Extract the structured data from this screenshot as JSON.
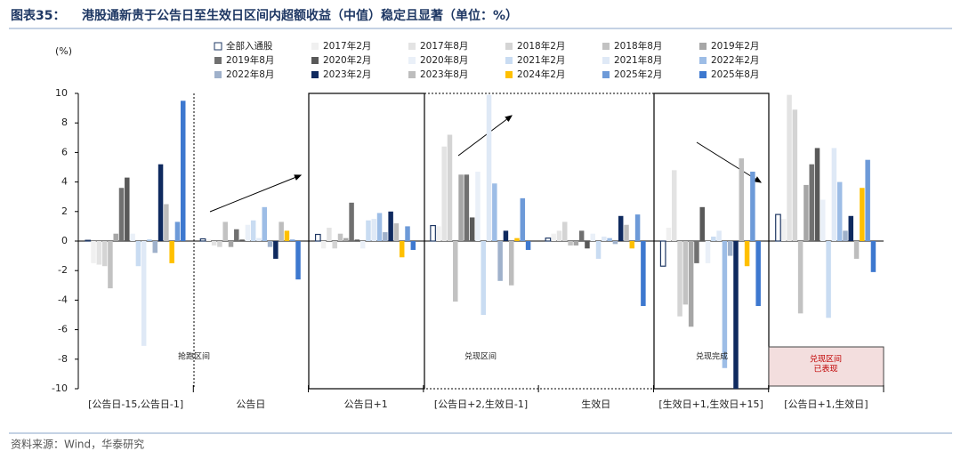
{
  "chart_data": {
    "type": "bar",
    "title_prefix": "图表35：",
    "title": "港股通新贵于公告日至生效日区间内超额收益（中值）稳定且显著（单位：%）",
    "y_unit": "(%)",
    "source": "资料来源：Wind，华泰研究",
    "categories": [
      "[公告日-15,公告日-1]",
      "公告日",
      "公告日+1",
      "[公告日+2,生效日-1]",
      "生效日",
      "[生效日+1,生效日+15]",
      "[公告日+1,生效日]"
    ],
    "annotations": [
      "抢跑区间",
      "兑现区间",
      "兑现完成"
    ],
    "highlight_note": [
      "兑现区间",
      "已表现"
    ],
    "ylim": [
      -10,
      10
    ],
    "yticks": [
      -10,
      -8,
      -6,
      -4,
      -2,
      0,
      2,
      4,
      6,
      8,
      10
    ],
    "series": [
      {
        "name": "全部入通股",
        "color": "#ffffff",
        "values": [
          0.05,
          0.15,
          0.45,
          1.05,
          0.2,
          -1.7,
          1.8
        ]
      },
      {
        "name": "2017年2月",
        "color": "#f0f0f0",
        "values": [
          -1.5,
          0.1,
          -0.5,
          1.0,
          0.5,
          0.9,
          1.5
        ]
      },
      {
        "name": "2017年8月",
        "color": "#e3e3e3",
        "values": [
          -1.6,
          -0.3,
          0.9,
          6.4,
          0.7,
          4.8,
          9.9
        ]
      },
      {
        "name": "2018年2月",
        "color": "#d4d4d4",
        "values": [
          -1.7,
          -0.4,
          -0.5,
          7.2,
          1.3,
          -5.1,
          8.9
        ]
      },
      {
        "name": "2018年8月",
        "color": "#c2c2c2",
        "values": [
          -3.2,
          1.3,
          0.5,
          -4.1,
          -0.3,
          -4.3,
          -4.9
        ]
      },
      {
        "name": "2019年2月",
        "color": "#a6a6a6",
        "values": [
          0.5,
          -0.4,
          0.2,
          4.5,
          -0.3,
          -5.8,
          3.8
        ]
      },
      {
        "name": "2019年8月",
        "color": "#707070",
        "values": [
          3.6,
          0.8,
          2.6,
          4.5,
          0.7,
          -1.5,
          5.2
        ]
      },
      {
        "name": "2020年2月",
        "color": "#595959",
        "values": [
          4.3,
          0.1,
          0.1,
          1.6,
          -0.5,
          2.3,
          6.3
        ]
      },
      {
        "name": "2020年8月",
        "color": "#eaf0f8",
        "values": [
          0.5,
          1.1,
          -0.5,
          4.7,
          0.5,
          -1.5,
          2.8
        ]
      },
      {
        "name": "2021年2月",
        "color": "#c9dcf2",
        "values": [
          -1.7,
          1.4,
          1.4,
          -5.0,
          -1.2,
          0.3,
          -5.2
        ]
      },
      {
        "name": "2021年8月",
        "color": "#dfe9f6",
        "values": [
          -7.1,
          0.2,
          1.5,
          9.9,
          0.3,
          0.7,
          6.3
        ]
      },
      {
        "name": "2022年2月",
        "color": "#9dbde6",
        "values": [
          0.1,
          2.3,
          1.9,
          3.9,
          0.2,
          -8.6,
          4.0
        ]
      },
      {
        "name": "2022年8月",
        "color": "#9fb1cb",
        "values": [
          -0.8,
          -0.4,
          0.6,
          -2.7,
          -0.2,
          -1.0,
          0.7
        ]
      },
      {
        "name": "2023年2月",
        "color": "#0f2a5f",
        "values": [
          5.2,
          -1.2,
          2.0,
          0.7,
          1.7,
          -10.0,
          1.7
        ]
      },
      {
        "name": "2023年8月",
        "color": "#bdbdbd",
        "values": [
          2.5,
          1.3,
          1.2,
          -3.0,
          1.1,
          5.6,
          -1.2
        ]
      },
      {
        "name": "2024年2月",
        "color": "#ffc000",
        "values": [
          -1.5,
          0.7,
          -1.1,
          0.2,
          -0.5,
          -1.7,
          3.6
        ]
      },
      {
        "name": "2025年2月",
        "color": "#6d9ad8",
        "values": [
          1.3,
          0.1,
          1.0,
          2.9,
          1.8,
          4.7,
          5.5
        ]
      },
      {
        "name": "2025年8月",
        "color": "#3d78cf",
        "values": [
          9.5,
          -2.6,
          -0.6,
          -0.6,
          -4.4,
          -4.4,
          -2.1
        ]
      }
    ]
  }
}
